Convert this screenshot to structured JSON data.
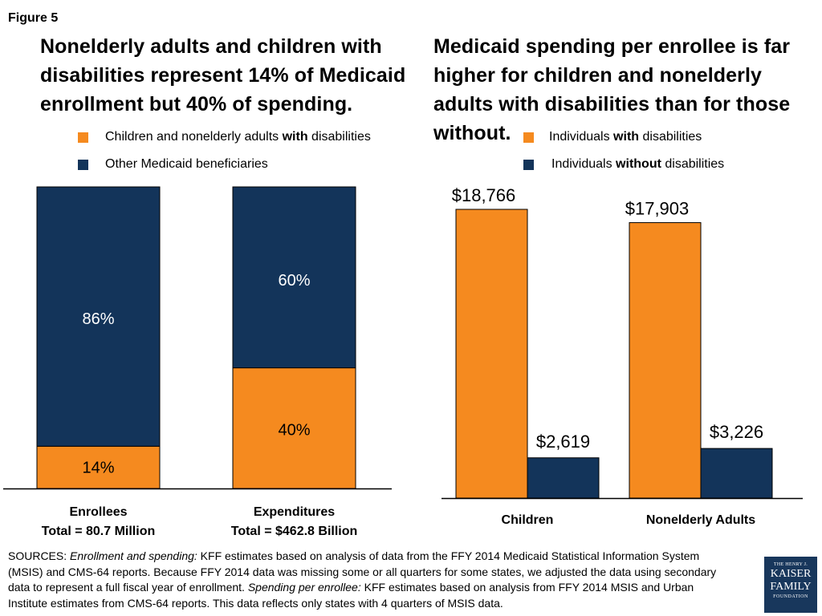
{
  "figure_label": "Figure 5",
  "colors": {
    "with": "#f58a1f",
    "without": "#13345a",
    "axis": "#000000"
  },
  "left_panel": {
    "headline": "Nonelderly adults and children with disabilities represent 14% of Medicaid enrollment but 40% of spending.",
    "legend": {
      "with_prefix": "Children and nonelderly adults ",
      "with_bold": "with",
      "with_suffix": " disabilities",
      "other": "Other Medicaid beneficiaries"
    },
    "category_titles": [
      "Enrollees",
      "Expenditures"
    ],
    "category_subtitles": [
      "Total = 80.7 Million",
      "Total = $462.8 Billion"
    ]
  },
  "right_panel": {
    "headline": "Medicaid spending per enrollee is far higher for children and nonelderly adults with disabilities than for those without.",
    "legend": {
      "with_prefix": "Individuals ",
      "with_bold": "with",
      "with_suffix": " disabilities",
      "without_prefix": "Individuals ",
      "without_bold": "without",
      "without_suffix": " disabilities"
    }
  },
  "chart_data": [
    {
      "type": "bar",
      "stacked": true,
      "categories": [
        "Enrollees",
        "Expenditures"
      ],
      "series": [
        {
          "name": "Children and nonelderly adults with disabilities",
          "values": [
            14,
            40
          ],
          "labels": [
            "14%",
            "40%"
          ]
        },
        {
          "name": "Other Medicaid beneficiaries",
          "values": [
            86,
            60
          ],
          "labels": [
            "86%",
            "60%"
          ]
        }
      ],
      "ylim": [
        0,
        100
      ]
    },
    {
      "type": "bar",
      "categories": [
        "Children",
        "Nonelderly Adults"
      ],
      "series": [
        {
          "name": "Individuals with disabilities",
          "values": [
            18766,
            17903
          ],
          "labels": [
            "$18,766",
            "$17,903"
          ]
        },
        {
          "name": "Individuals without disabilities",
          "values": [
            2619,
            3226
          ],
          "labels": [
            "$2,619",
            "$3,226"
          ]
        }
      ]
    }
  ],
  "sources": {
    "prefix": "SOURCES: ",
    "enroll_label": "Enrollment and spending:",
    "enroll_text": " KFF estimates based on analysis of data from the FFY 2014 Medicaid Statistical Information System (MSIS) and CMS-64 reports. Because FFY 2014 data was missing some or all quarters for some states, we adjusted the data using secondary data to represent a full fiscal year of enrollment. ",
    "per_label": "Spending per enrollee:",
    "per_text": " KFF estimates based on analysis from FFY 2014 MSIS and Urban Institute estimates from CMS-64 reports. This data reflects only states with 4 quarters of MSIS data."
  },
  "logo": {
    "line1": "THE HENRY J.",
    "line2": "KAISER",
    "line3": "FAMILY",
    "line4": "FOUNDATION"
  }
}
